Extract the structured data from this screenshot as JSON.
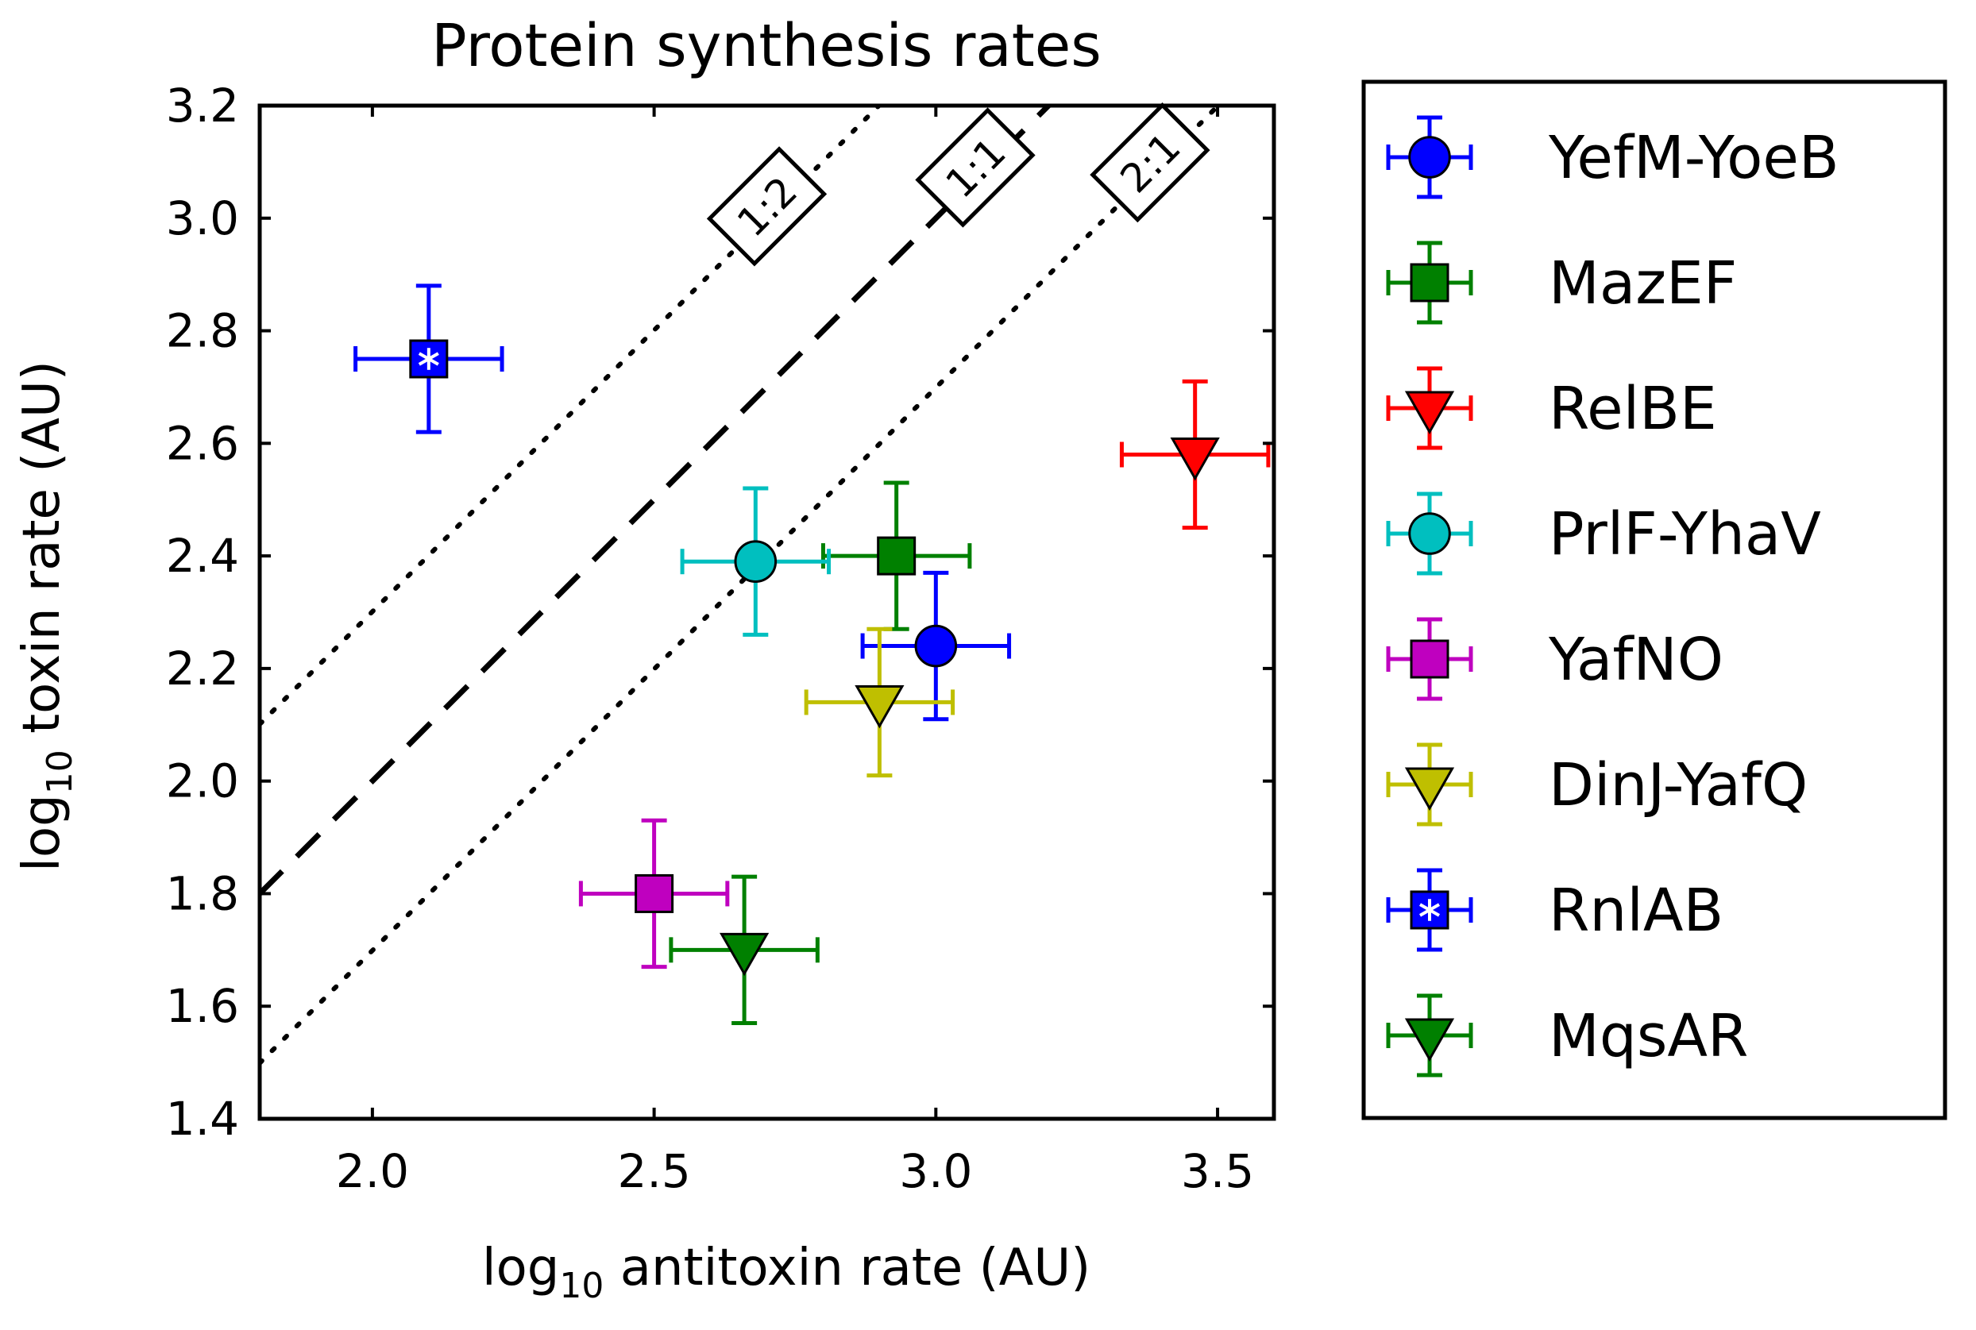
{
  "chart_data": {
    "type": "scatter",
    "title": "Protein synthesis rates",
    "xlabel": {
      "prefix": "log",
      "subscript": "10",
      "suffix": " antitoxin rate (AU)"
    },
    "ylabel": {
      "prefix": "log",
      "subscript": "10",
      "suffix": " toxin rate (AU)"
    },
    "xlim": [
      1.8,
      3.6
    ],
    "ylim": [
      1.4,
      3.2
    ],
    "xticks": [
      2.0,
      2.5,
      3.0,
      3.5
    ],
    "xtick_labels": [
      "2.0",
      "2.5",
      "3.0",
      "3.5"
    ],
    "yticks": [
      1.4,
      1.6,
      1.8,
      2.0,
      2.2,
      2.4,
      2.6,
      2.8,
      3.0,
      3.2
    ],
    "ytick_labels": [
      "1.4",
      "1.6",
      "1.8",
      "2.0",
      "2.2",
      "2.4",
      "2.6",
      "2.8",
      "3.0",
      "3.2"
    ],
    "legend_position": "outside-right",
    "reference_lines": [
      {
        "label": "1:2",
        "style": "dotted",
        "offset": 0.30103
      },
      {
        "label": "1:1",
        "style": "dashed",
        "offset": 0.0
      },
      {
        "label": "2:1",
        "style": "dotted",
        "offset": -0.30103
      }
    ],
    "series": [
      {
        "name": "YefM-YoeB",
        "x": 3.0,
        "y": 2.24,
        "xerr": 0.13,
        "yerr": 0.13,
        "marker": "circle",
        "color": "#0000ff"
      },
      {
        "name": "MazEF",
        "x": 2.93,
        "y": 2.4,
        "xerr": 0.13,
        "yerr": 0.13,
        "marker": "square",
        "color": "#008000"
      },
      {
        "name": "RelBE",
        "x": 3.46,
        "y": 2.58,
        "xerr": 0.13,
        "yerr": 0.13,
        "marker": "triangle-down",
        "color": "#ff0000"
      },
      {
        "name": "PrlF-YhaV",
        "x": 2.68,
        "y": 2.39,
        "xerr": 0.13,
        "yerr": 0.13,
        "marker": "circle",
        "color": "#00bfbf"
      },
      {
        "name": "YafNO",
        "x": 2.5,
        "y": 1.8,
        "xerr": 0.13,
        "yerr": 0.13,
        "marker": "square",
        "color": "#bf00bf"
      },
      {
        "name": "DinJ-YafQ",
        "x": 2.9,
        "y": 2.14,
        "xerr": 0.13,
        "yerr": 0.13,
        "marker": "triangle-down",
        "color": "#bfbf00"
      },
      {
        "name": "RnlAB",
        "x": 2.1,
        "y": 2.75,
        "xerr": 0.13,
        "yerr": 0.13,
        "marker": "square-star",
        "color": "#0000ff"
      },
      {
        "name": "MqsAR",
        "x": 2.66,
        "y": 1.7,
        "xerr": 0.13,
        "yerr": 0.13,
        "marker": "triangle-down",
        "color": "#008000"
      }
    ]
  }
}
